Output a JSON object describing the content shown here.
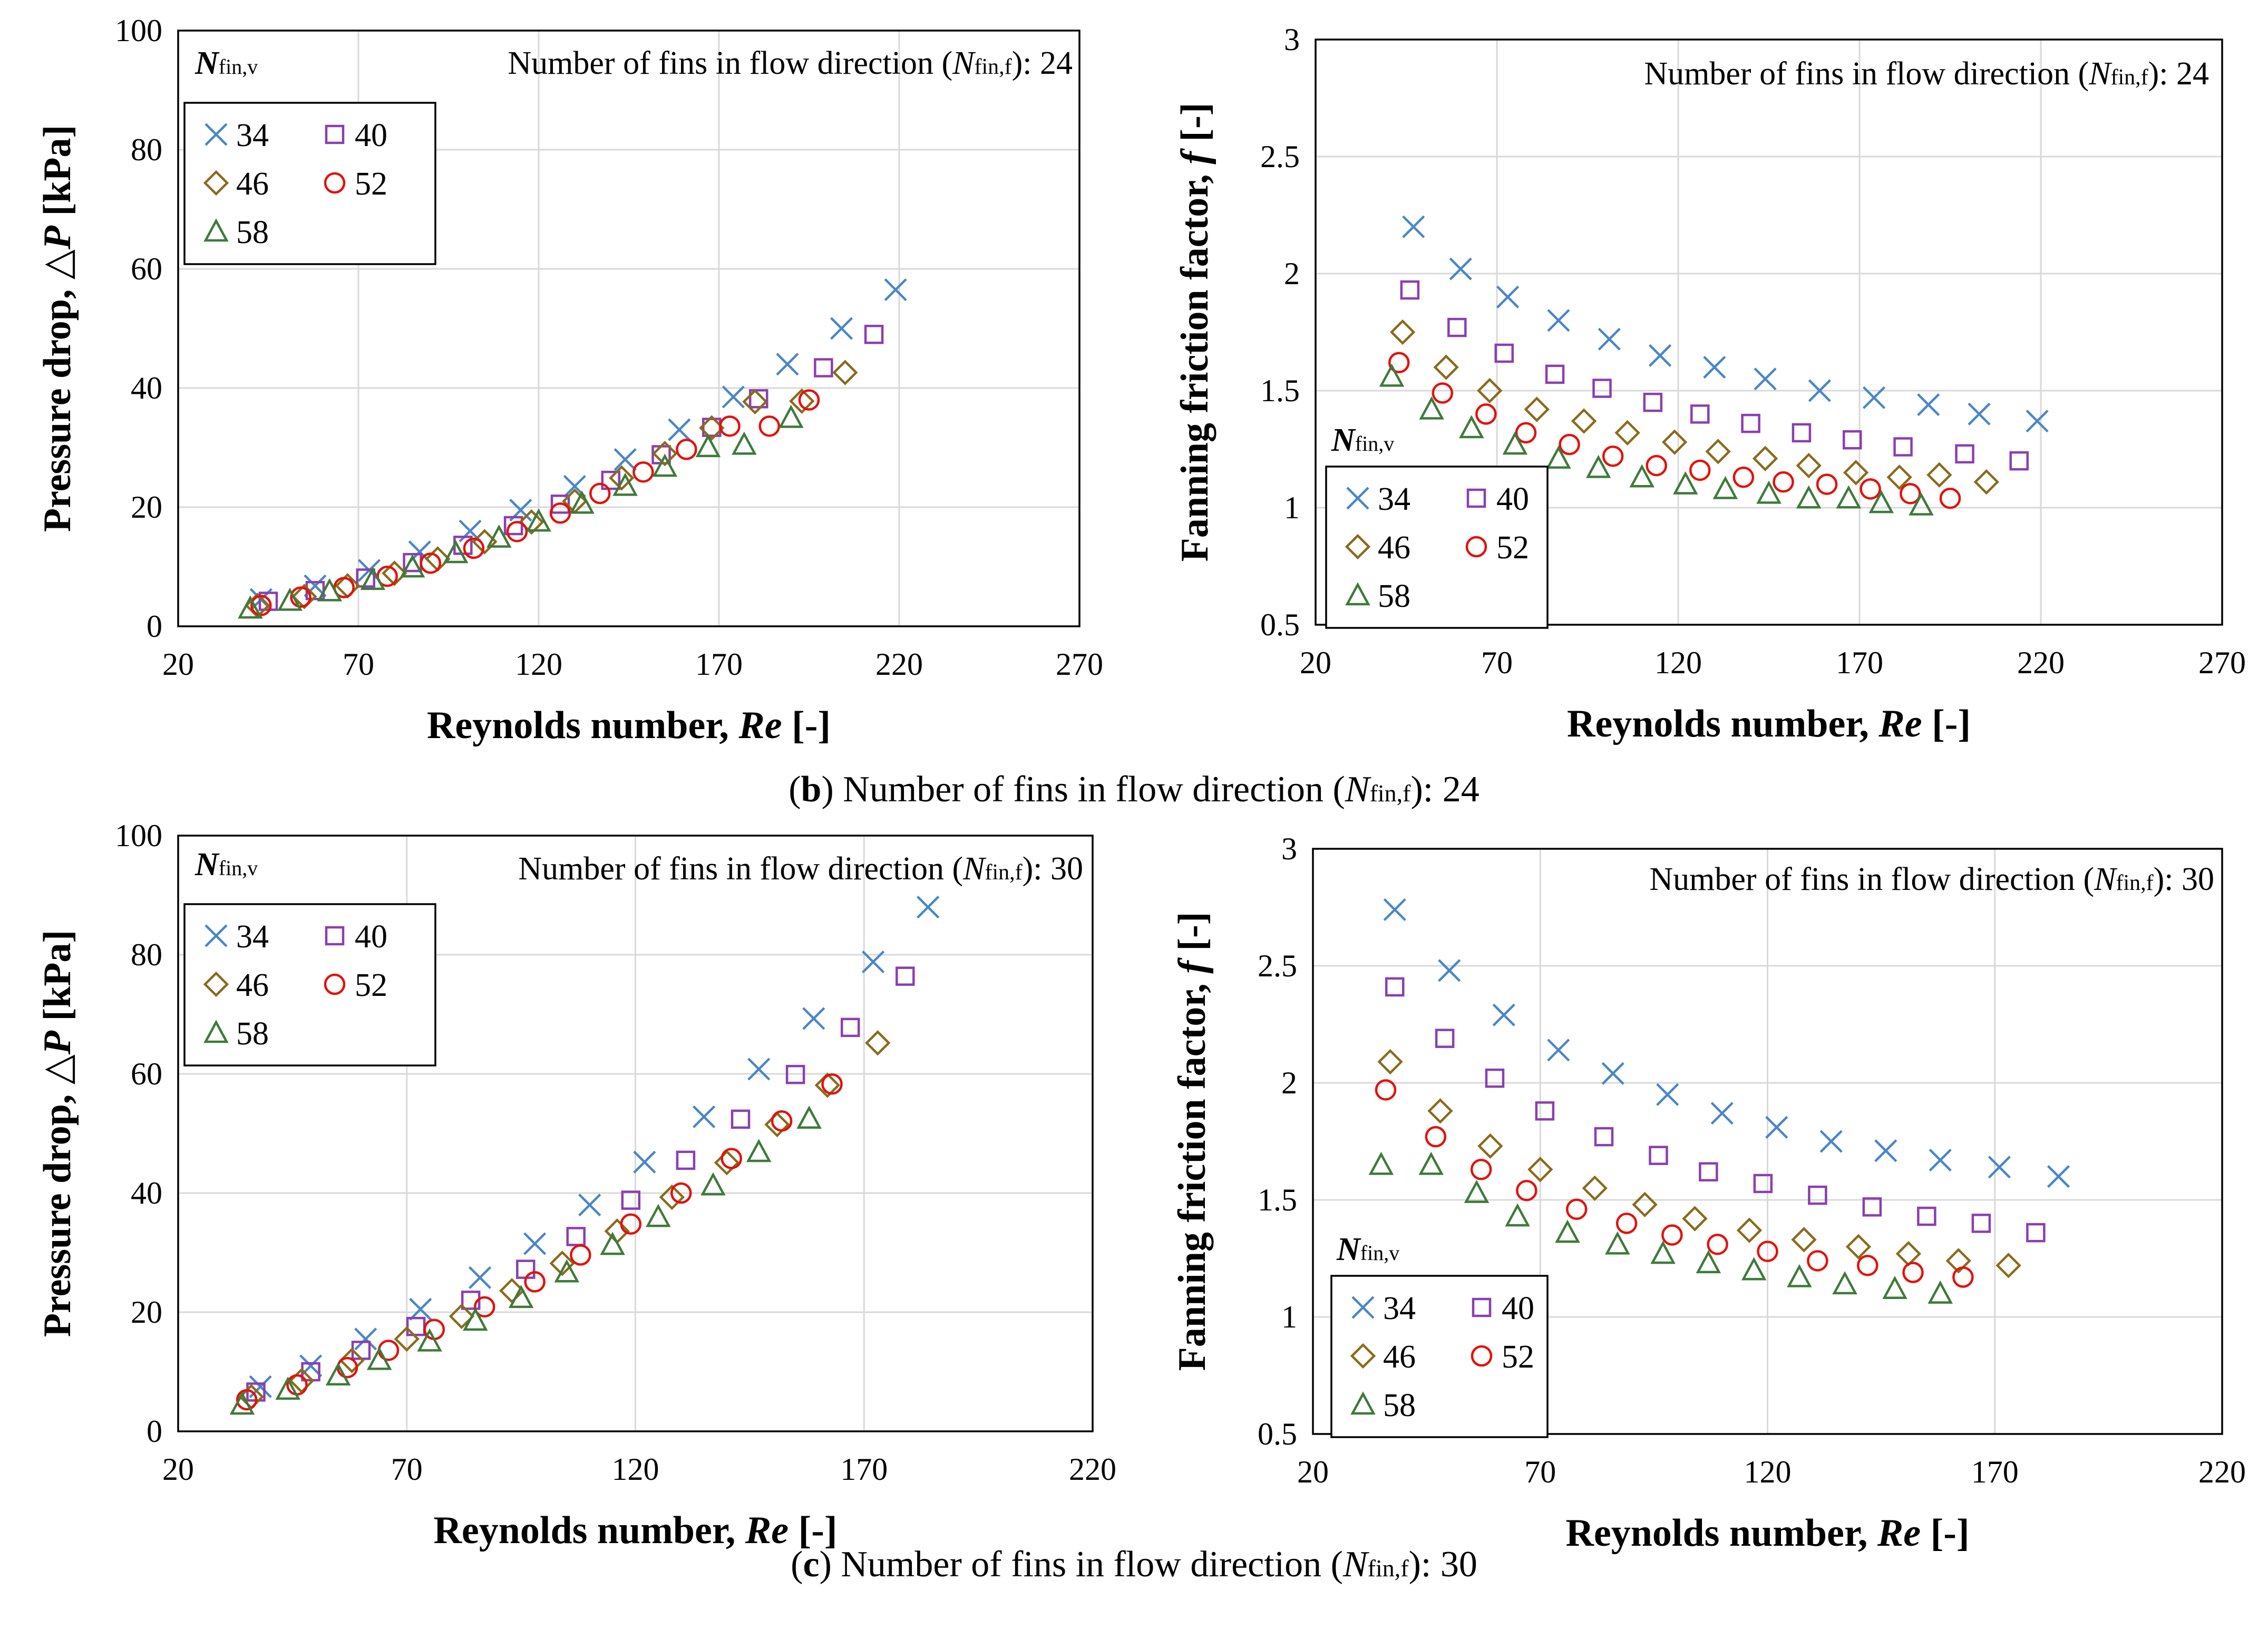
{
  "colors": {
    "s34": "#4a86c8",
    "s40": "#8a3fb0",
    "s46": "#8a6a1c",
    "s52": "#e3120b",
    "s58": "#3e7a3a",
    "grid": "#d9d9d9"
  },
  "captions": [
    {
      "label": "b",
      "text": "Number of fins in flow direction (",
      "sym": "N",
      "sub": "fin,f",
      "tail": "): 24"
    },
    {
      "label": "c",
      "text": "Number of fins in flow direction (",
      "sym": "N",
      "sub": "fin,f",
      "tail": "): 30"
    }
  ],
  "chart_data": [
    {
      "id": "b-left",
      "type": "scatter",
      "title": "",
      "annotation": {
        "text": "Number of fins in flow direction (",
        "sym": "N",
        "sub": "fin,f",
        "tail": "): 24"
      },
      "xlabel": {
        "text": "Reynolds number, ",
        "sym": "Re",
        "tail": " [-]"
      },
      "ylabel": {
        "text": "Pressure drop, ",
        "sym": "△P",
        "tail": " [kPa]"
      },
      "xlim": [
        20,
        270
      ],
      "ylim": [
        0,
        100
      ],
      "xticks": [
        20,
        70,
        120,
        170,
        220,
        270
      ],
      "yticks": [
        0,
        20,
        40,
        60,
        80,
        100
      ],
      "grid": true,
      "legend": {
        "title_sym": "N",
        "title_sub": "fin,v",
        "placement": "top-left"
      },
      "series": [
        {
          "name": "34",
          "marker": "x",
          "color_key": "s34",
          "x": [
            43,
            58,
            73,
            87,
            101,
            115,
            130,
            144,
            159,
            174,
            189,
            204,
            219
          ],
          "y": [
            4.5,
            6.8,
            9.4,
            12.5,
            16.0,
            19.5,
            23.5,
            28.0,
            33.0,
            38.5,
            44.0,
            50.0,
            56.5
          ]
        },
        {
          "name": "40",
          "marker": "square",
          "color_key": "s40",
          "x": [
            45,
            58,
            72,
            85,
            99,
            113,
            126,
            140,
            154,
            168,
            181,
            199,
            213
          ],
          "y": [
            4.2,
            6.0,
            8.1,
            10.7,
            13.6,
            16.9,
            20.5,
            24.5,
            28.8,
            33.4,
            38.2,
            43.4,
            49.0
          ]
        },
        {
          "name": "46",
          "marker": "diamond",
          "color_key": "s46",
          "x": [
            42,
            55,
            67,
            80,
            92,
            105,
            118,
            130,
            143,
            155,
            168,
            180,
            193,
            205
          ],
          "y": [
            3.5,
            5.0,
            6.8,
            8.9,
            11.3,
            14.2,
            17.5,
            21.0,
            24.9,
            29.0,
            33.3,
            37.7,
            37.8,
            42.6
          ]
        },
        {
          "name": "52",
          "marker": "circle",
          "color_key": "s52",
          "x": [
            43,
            54,
            66,
            78,
            90,
            102,
            114,
            126,
            137,
            149,
            161,
            173,
            184,
            195
          ],
          "y": [
            3.5,
            4.9,
            6.5,
            8.4,
            10.6,
            13.1,
            15.9,
            19.0,
            22.3,
            25.9,
            29.7,
            33.6,
            33.6,
            38.0
          ]
        },
        {
          "name": "58",
          "marker": "triangle",
          "color_key": "s58",
          "x": [
            40,
            51,
            62,
            74,
            85,
            97,
            109,
            120,
            132,
            144,
            155,
            167,
            177,
            190
          ],
          "y": [
            3.0,
            4.3,
            5.9,
            7.8,
            9.9,
            12.3,
            14.9,
            17.6,
            20.6,
            23.6,
            26.8,
            30.1,
            30.5,
            35.0
          ]
        }
      ]
    },
    {
      "id": "b-right",
      "type": "scatter",
      "title": "",
      "annotation": {
        "text": "Number of fins in flow direction (",
        "sym": "N",
        "sub": "fin,f",
        "tail": "): 24"
      },
      "xlabel": {
        "text": "Reynolds number, ",
        "sym": "Re",
        "tail": " [-]"
      },
      "ylabel": {
        "text": "Fanning friction factor, ",
        "sym": "f",
        "tail": " [-]"
      },
      "xlim": [
        20,
        270
      ],
      "ylim": [
        0.5,
        3
      ],
      "xticks": [
        20,
        70,
        120,
        170,
        220,
        270
      ],
      "yticks": [
        0.5,
        1,
        1.5,
        2,
        2.5,
        3
      ],
      "grid": true,
      "legend": {
        "title_sym": "N",
        "title_sub": "fin,v",
        "placement": "bottom-left"
      },
      "series": [
        {
          "name": "34",
          "marker": "x",
          "color_key": "s34",
          "x": [
            47,
            60,
            73,
            87,
            101,
            115,
            130,
            144,
            159,
            174,
            189,
            203,
            219
          ],
          "y": [
            2.2,
            2.02,
            1.9,
            1.8,
            1.72,
            1.65,
            1.6,
            1.55,
            1.5,
            1.47,
            1.44,
            1.4,
            1.37
          ]
        },
        {
          "name": "40",
          "marker": "square",
          "color_key": "s40",
          "x": [
            46,
            59,
            72,
            86,
            99,
            113,
            126,
            140,
            154,
            168,
            182,
            199,
            214
          ],
          "y": [
            1.93,
            1.77,
            1.66,
            1.57,
            1.51,
            1.45,
            1.4,
            1.36,
            1.32,
            1.29,
            1.26,
            1.23,
            1.2
          ]
        },
        {
          "name": "46",
          "marker": "diamond",
          "color_key": "s46",
          "x": [
            44,
            56,
            68,
            81,
            94,
            106,
            119,
            131,
            144,
            156,
            169,
            181,
            192,
            205
          ],
          "y": [
            1.75,
            1.6,
            1.5,
            1.42,
            1.37,
            1.32,
            1.28,
            1.24,
            1.21,
            1.18,
            1.15,
            1.13,
            1.14,
            1.11
          ]
        },
        {
          "name": "52",
          "marker": "circle",
          "color_key": "s52",
          "x": [
            43,
            55,
            67,
            78,
            90,
            102,
            114,
            126,
            138,
            149,
            161,
            173,
            184,
            195
          ],
          "y": [
            1.62,
            1.49,
            1.4,
            1.32,
            1.27,
            1.22,
            1.18,
            1.16,
            1.13,
            1.11,
            1.1,
            1.08,
            1.06,
            1.04
          ]
        },
        {
          "name": "58",
          "marker": "triangle",
          "color_key": "s58",
          "x": [
            41,
            52,
            63,
            75,
            87,
            98,
            110,
            122,
            133,
            145,
            156,
            167,
            176,
            187
          ],
          "y": [
            1.56,
            1.42,
            1.34,
            1.27,
            1.21,
            1.17,
            1.13,
            1.1,
            1.08,
            1.06,
            1.04,
            1.04,
            1.02,
            1.01
          ]
        }
      ]
    },
    {
      "id": "c-left",
      "type": "scatter",
      "title": "",
      "annotation": {
        "text": "Number of fins in flow direction (",
        "sym": "N",
        "sub": "fin,f",
        "tail": "): 30"
      },
      "xlabel": {
        "text": "Reynolds number, ",
        "sym": "Re",
        "tail": " [-]"
      },
      "ylabel": {
        "text": "Pressure drop, ",
        "sym": "△P",
        "tail": " [kPa]"
      },
      "xlim": [
        20,
        220
      ],
      "ylim": [
        0,
        100
      ],
      "xticks": [
        20,
        70,
        120,
        170,
        220
      ],
      "yticks": [
        0,
        20,
        40,
        60,
        80,
        100
      ],
      "grid": true,
      "legend": {
        "title_sym": "N",
        "title_sub": "fin,v",
        "placement": "top-left"
      },
      "series": [
        {
          "name": "34",
          "marker": "x",
          "color_key": "s34",
          "x": [
            38,
            49,
            61,
            73,
            86,
            98,
            110,
            122,
            135,
            147,
            159,
            172,
            184
          ],
          "y": [
            7.5,
            11.0,
            15.5,
            20.5,
            25.8,
            31.5,
            38.0,
            45.2,
            52.8,
            60.8,
            69.3,
            78.8,
            88.0
          ]
        },
        {
          "name": "40",
          "marker": "square",
          "color_key": "s40",
          "x": [
            37,
            49,
            60,
            72,
            84,
            96,
            107,
            119,
            131,
            143,
            155,
            167,
            179
          ],
          "y": [
            6.6,
            10.0,
            13.6,
            17.6,
            22.0,
            27.2,
            32.7,
            38.8,
            45.5,
            52.4,
            59.9,
            67.8,
            76.4
          ]
        },
        {
          "name": "46",
          "marker": "diamond",
          "color_key": "s46",
          "x": [
            36,
            47,
            58,
            70,
            82,
            93,
            104,
            116,
            128,
            140,
            151,
            162,
            173
          ],
          "y": [
            5.8,
            8.5,
            11.9,
            15.5,
            19.3,
            23.6,
            28.2,
            33.6,
            39.3,
            45.1,
            51.5,
            58.1,
            65.2
          ]
        },
        {
          "name": "52",
          "marker": "circle",
          "color_key": "s52",
          "x": [
            35,
            46,
            57,
            66,
            76,
            87,
            98,
            108,
            119,
            130,
            141,
            152,
            163
          ],
          "y": [
            5.3,
            7.8,
            10.7,
            13.6,
            17.1,
            20.9,
            25.1,
            29.6,
            34.8,
            40.0,
            45.8,
            52.1,
            58.3
          ]
        },
        {
          "name": "58",
          "marker": "triangle",
          "color_key": "s58",
          "x": [
            34,
            44,
            55,
            64,
            75,
            85,
            95,
            105,
            115,
            125,
            137,
            147,
            158
          ],
          "y": [
            4.5,
            7.0,
            9.4,
            12.0,
            15.1,
            18.6,
            22.4,
            26.7,
            31.3,
            36.0,
            41.3,
            46.9,
            52.5
          ]
        }
      ]
    },
    {
      "id": "c-right",
      "type": "scatter",
      "title": "",
      "annotation": {
        "text": "Number of fins in flow direction (",
        "sym": "N",
        "sub": "fin,f",
        "tail": "): 30"
      },
      "xlabel": {
        "text": "Reynolds number, ",
        "sym": "Re",
        "tail": " [-]"
      },
      "ylabel": {
        "text": "Fanning friction factor, ",
        "sym": "f",
        "tail": " [-]"
      },
      "xlim": [
        20,
        220
      ],
      "ylim": [
        0.5,
        3
      ],
      "xticks": [
        20,
        70,
        120,
        170,
        220
      ],
      "yticks": [
        0.5,
        1,
        1.5,
        2,
        2.5,
        3
      ],
      "grid": true,
      "legend": {
        "title_sym": "N",
        "title_sub": "fin,v",
        "placement": "bottom-left"
      },
      "series": [
        {
          "name": "34",
          "marker": "x",
          "color_key": "s34",
          "x": [
            38,
            50,
            62,
            74,
            86,
            98,
            110,
            122,
            134,
            146,
            158,
            171,
            184
          ],
          "y": [
            2.74,
            2.48,
            2.29,
            2.14,
            2.04,
            1.95,
            1.87,
            1.81,
            1.75,
            1.71,
            1.67,
            1.64,
            1.6
          ]
        },
        {
          "name": "40",
          "marker": "square",
          "color_key": "s40",
          "x": [
            38,
            49,
            60,
            71,
            84,
            96,
            107,
            119,
            131,
            143,
            155,
            167,
            179
          ],
          "y": [
            2.41,
            2.19,
            2.02,
            1.88,
            1.77,
            1.69,
            1.62,
            1.57,
            1.52,
            1.47,
            1.43,
            1.4,
            1.36
          ]
        },
        {
          "name": "46",
          "marker": "diamond",
          "color_key": "s46",
          "x": [
            37,
            48,
            59,
            70,
            82,
            93,
            104,
            116,
            128,
            140,
            151,
            162,
            173
          ],
          "y": [
            2.09,
            1.88,
            1.73,
            1.63,
            1.55,
            1.48,
            1.42,
            1.37,
            1.33,
            1.3,
            1.27,
            1.24,
            1.22
          ]
        },
        {
          "name": "52",
          "marker": "circle",
          "color_key": "s52",
          "x": [
            36,
            47,
            57,
            67,
            78,
            89,
            99,
            109,
            120,
            131,
            142,
            152,
            163
          ],
          "y": [
            1.97,
            1.77,
            1.63,
            1.54,
            1.46,
            1.4,
            1.35,
            1.31,
            1.28,
            1.24,
            1.22,
            1.19,
            1.17
          ]
        },
        {
          "name": "58",
          "marker": "triangle",
          "color_key": "s58",
          "x": [
            35,
            46,
            56,
            65,
            76,
            87,
            97,
            107,
            117,
            127,
            137,
            148,
            158
          ],
          "y": [
            1.65,
            1.65,
            1.53,
            1.43,
            1.36,
            1.31,
            1.27,
            1.23,
            1.2,
            1.17,
            1.14,
            1.12,
            1.1
          ]
        }
      ]
    }
  ]
}
